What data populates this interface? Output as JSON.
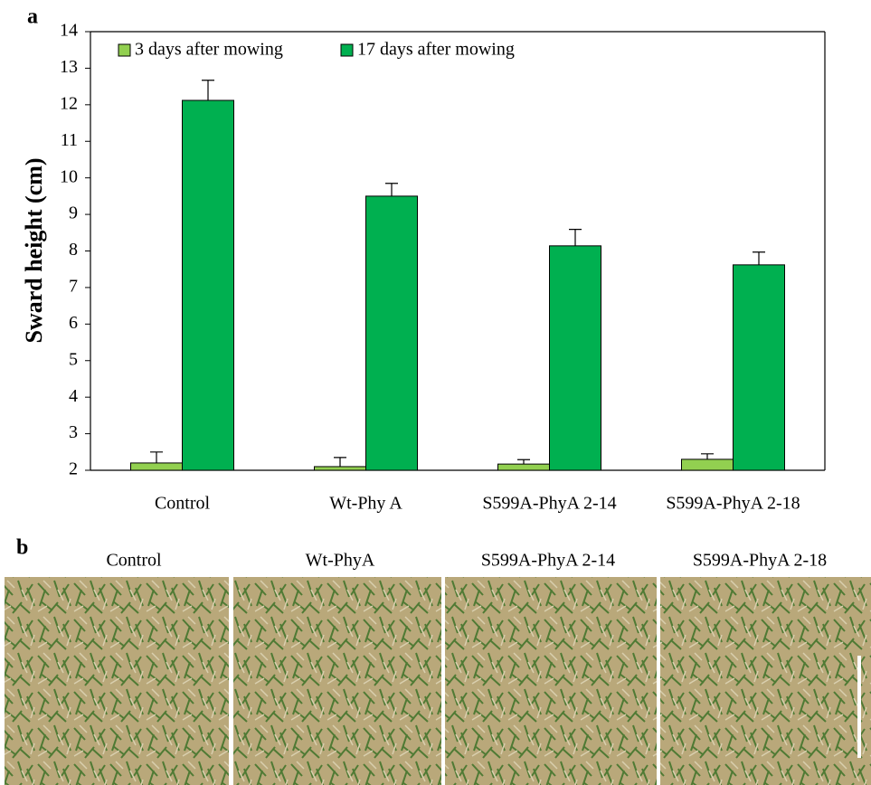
{
  "chart_data": {
    "type": "bar",
    "panel_label": "a",
    "y_label": "Sward height (cm)",
    "categories": [
      "Control",
      "Wt-Phy A",
      "S599A-PhyA 2-14",
      "S599A-PhyA 2-18"
    ],
    "series": [
      {
        "name": "3 days after mowing",
        "color": "#92d050",
        "values": [
          2.2,
          2.1,
          2.17,
          2.3
        ],
        "error": [
          0.3,
          0.25,
          0.12,
          0.15
        ]
      },
      {
        "name": "17 days after mowing",
        "color": "#00b050",
        "values": [
          12.12,
          9.5,
          8.14,
          7.62
        ],
        "error": [
          0.55,
          0.35,
          0.45,
          0.35
        ]
      }
    ],
    "ylim": [
      2,
      14
    ],
    "yticks": [
      2,
      3,
      4,
      5,
      6,
      7,
      8,
      9,
      10,
      11,
      12,
      13,
      14
    ],
    "grid": false,
    "legend": "top-left"
  },
  "photos": {
    "panel_label": "b",
    "captions": [
      "Control",
      "Wt-PhyA",
      "S599A-PhyA 2-14",
      "S599A-PhyA 2-18"
    ]
  }
}
